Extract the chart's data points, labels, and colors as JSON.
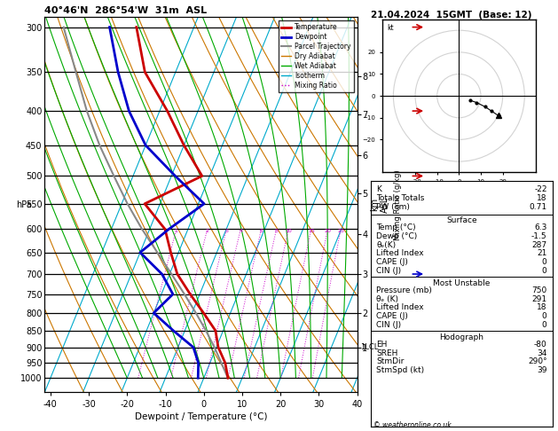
{
  "title_left": "40°46'N  286°54'W  31m  ASL",
  "title_right": "21.04.2024  15GMT  (Base: 12)",
  "xlabel": "Dewpoint / Temperature (°C)",
  "ylabel_left": "hPa",
  "pressure_levels": [
    300,
    350,
    400,
    450,
    500,
    550,
    600,
    650,
    700,
    750,
    800,
    850,
    900,
    950,
    1000
  ],
  "temp_range": [
    -40,
    40
  ],
  "pressure_range": [
    1050,
    290
  ],
  "colors": {
    "temperature": "#cc0000",
    "dewpoint": "#0000cc",
    "parcel": "#888888",
    "dry_adiabat": "#cc7700",
    "wet_adiabat": "#00aa00",
    "isotherm": "#00aacc",
    "mixing_ratio": "#cc00cc",
    "isobar": "#000000",
    "background": "#ffffff"
  },
  "temperature_profile": {
    "pressure": [
      1000,
      950,
      900,
      850,
      800,
      750,
      700,
      650,
      600,
      550,
      500,
      450,
      400,
      350,
      300
    ],
    "temp": [
      6.3,
      4.0,
      0.5,
      -2.0,
      -7.0,
      -12.5,
      -18.0,
      -22.0,
      -26.0,
      -34.0,
      -22.0,
      -30.0,
      -38.0,
      -48.0,
      -55.0
    ]
  },
  "dewpoint_profile": {
    "pressure": [
      1000,
      950,
      900,
      850,
      800,
      750,
      700,
      650,
      600,
      550,
      500,
      450,
      400,
      350,
      300
    ],
    "temp": [
      -1.5,
      -3.0,
      -6.0,
      -13.0,
      -20.0,
      -17.0,
      -22.0,
      -30.0,
      -25.0,
      -18.5,
      -29.0,
      -40.0,
      -48.0,
      -55.0,
      -62.0
    ]
  },
  "parcel_profile": {
    "pressure": [
      1000,
      950,
      900,
      850,
      800,
      750,
      700,
      650,
      600,
      550,
      500,
      450,
      400,
      350,
      300
    ],
    "temp": [
      6.3,
      3.0,
      -0.5,
      -4.5,
      -9.0,
      -14.0,
      -19.5,
      -25.5,
      -32.0,
      -38.5,
      -45.0,
      -52.0,
      -59.0,
      -66.0,
      -74.0
    ]
  },
  "mixing_ratio_lines": [
    1,
    2,
    3,
    4,
    6,
    8,
    10,
    15,
    20,
    25
  ],
  "km_ticks": {
    "values": [
      1,
      2,
      3,
      4,
      5,
      6,
      7,
      8
    ],
    "pressures": [
      900,
      800,
      700,
      610,
      530,
      465,
      405,
      355
    ]
  },
  "lcl_pressure": 900,
  "info_panel": {
    "K": "-22",
    "Totals_Totals": "18",
    "PW_cm": "0.71",
    "Surface_Temp": "6.3",
    "Surface_Dewp": "-1.5",
    "Surface_theta_e": "287",
    "Lifted_Index": "21",
    "CAPE": "0",
    "CIN": "0",
    "MU_Pressure": "750",
    "MU_theta_e": "291",
    "MU_Lifted_Index": "18",
    "MU_CAPE": "0",
    "MU_CIN": "0",
    "EH": "-80",
    "SREH": "34",
    "StmDir": "290°",
    "StmSpd": "39"
  },
  "hodograph_circles": [
    10,
    20,
    30
  ],
  "wind_hodo_u": [
    5,
    8,
    12,
    15,
    18
  ],
  "wind_hodo_v": [
    -2,
    -3,
    -5,
    -7,
    -9
  ],
  "wind_barb_pressures": [
    300,
    400,
    500,
    700
  ],
  "wind_barb_colors_right": [
    "#cc0000",
    "#cc0000",
    "#cc0000",
    "#0000cc"
  ]
}
